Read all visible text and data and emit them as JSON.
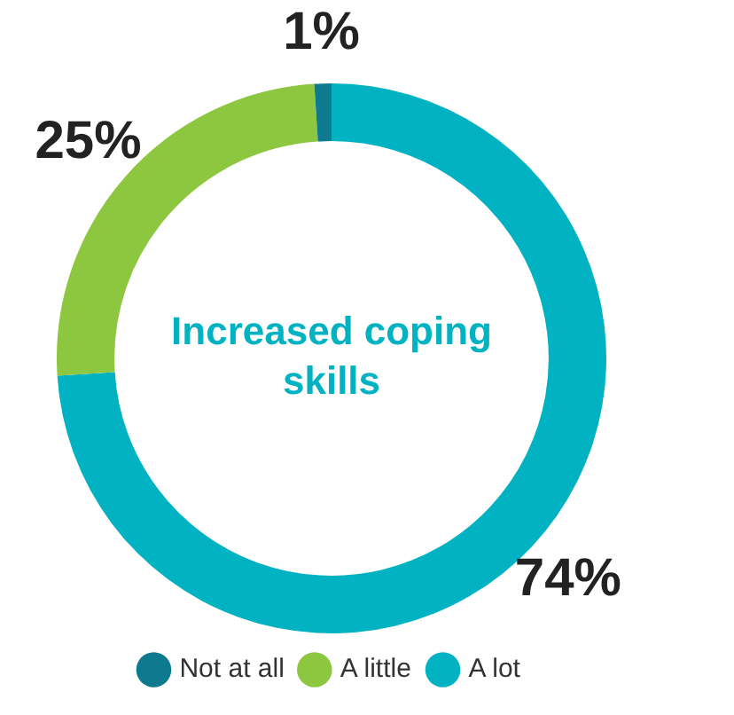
{
  "chart_data": {
    "type": "donut",
    "title": "Increased coping skills",
    "categories": [
      "Not at all",
      "A little",
      "A lot"
    ],
    "values": [
      1,
      25,
      74
    ],
    "colors": [
      "#0e7a8f",
      "#8dc63f",
      "#00b2c2"
    ],
    "value_labels": [
      "1%",
      "25%",
      "74%"
    ],
    "legend": "bottom"
  }
}
